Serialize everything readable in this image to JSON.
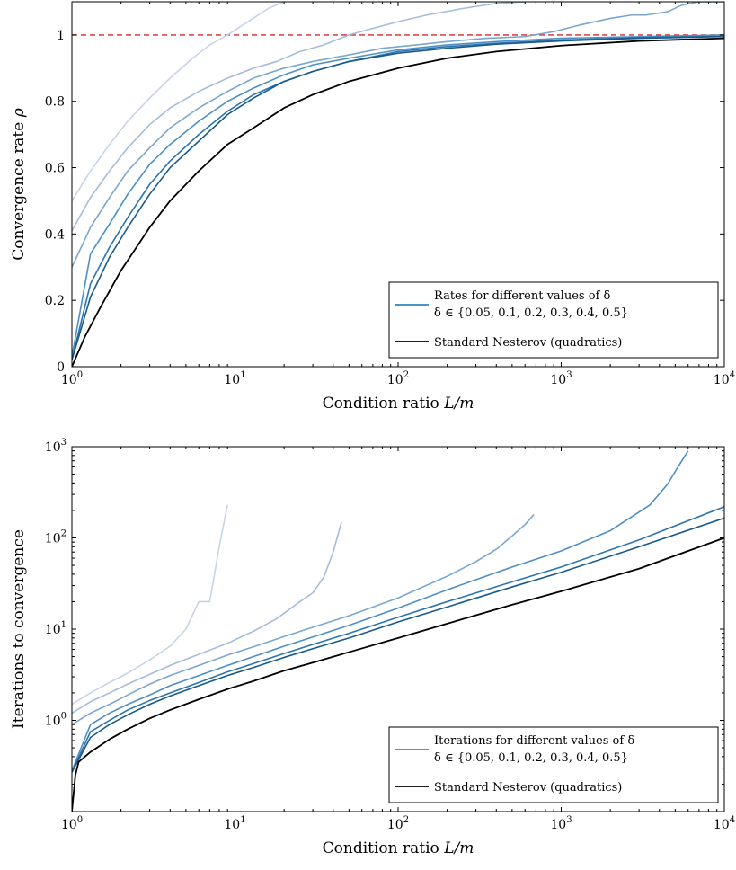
{
  "chart_data": [
    {
      "type": "line",
      "xlabel": "Condition ratio L/m",
      "ylabel": "Convergence rate ρ",
      "xscale": "log",
      "xlim": [
        1,
        10000
      ],
      "ylim": [
        0,
        1.1
      ],
      "xticks": [
        "10^0",
        "10^1",
        "10^2",
        "10^3",
        "10^4"
      ],
      "yticks": [
        "0",
        "0.2",
        "0.4",
        "0.6",
        "0.8",
        "1"
      ],
      "grid": false,
      "legend_position": "bottom-right",
      "legend": [
        {
          "label_line1": "Rates for different values of δ",
          "label_line2": "δ ∈ {0.05, 0.1, 0.2, 0.3, 0.4, 0.5}",
          "color": "#2e86c1"
        },
        {
          "label_line1": "Standard Nesterov (quadratics)",
          "color": "#000000"
        }
      ],
      "reference_line": {
        "y": 1,
        "color": "#d62728",
        "style": "dashed"
      },
      "series": [
        {
          "delta": 0.5,
          "color": "#c9d3e6",
          "x": [
            1,
            1.3,
            1.7,
            2.2,
            3,
            4,
            5.5,
            7,
            9,
            12,
            16,
            20
          ],
          "y": [
            0.5,
            0.59,
            0.67,
            0.74,
            0.81,
            0.87,
            0.93,
            0.97,
            1.0,
            1.04,
            1.08,
            1.1
          ]
        },
        {
          "delta": 0.4,
          "color": "#a7bcda",
          "x": [
            1,
            1.3,
            1.7,
            2.2,
            3,
            4,
            6,
            9,
            13,
            18,
            25,
            35,
            50,
            70,
            100,
            150,
            250,
            400,
            600
          ],
          "y": [
            0.41,
            0.51,
            0.59,
            0.66,
            0.73,
            0.78,
            0.83,
            0.87,
            0.9,
            0.92,
            0.95,
            0.97,
            1.0,
            1.02,
            1.04,
            1.06,
            1.08,
            1.095,
            1.1
          ]
        },
        {
          "delta": 0.3,
          "color": "#7ba6cf",
          "x": [
            1,
            1.3,
            1.7,
            2.2,
            3,
            4,
            6,
            9,
            13,
            20,
            30,
            50,
            80,
            130,
            200,
            350,
            600,
            900,
            1300,
            2000,
            2700,
            3300,
            4500,
            5500,
            7000,
            10000
          ],
          "y": [
            0.3,
            0.42,
            0.51,
            0.59,
            0.66,
            0.72,
            0.78,
            0.83,
            0.87,
            0.9,
            0.92,
            0.94,
            0.96,
            0.97,
            0.98,
            0.99,
            0.995,
            1.01,
            1.03,
            1.05,
            1.06,
            1.06,
            1.07,
            1.09,
            1.1,
            1.1
          ]
        },
        {
          "delta": 0.2,
          "color": "#4d8fc4",
          "x": [
            1,
            1.3,
            1.7,
            2.2,
            3,
            4,
            6,
            9,
            13,
            20,
            30,
            50,
            100,
            200,
            400,
            1000,
            3000,
            10000
          ],
          "y": [
            0.03,
            0.34,
            0.43,
            0.52,
            0.61,
            0.67,
            0.74,
            0.8,
            0.84,
            0.88,
            0.91,
            0.93,
            0.955,
            0.97,
            0.98,
            0.99,
            0.995,
            1.0
          ]
        },
        {
          "delta": 0.1,
          "color": "#2a74b0",
          "x": [
            1,
            1.3,
            1.7,
            2.2,
            3,
            4,
            6,
            9,
            13,
            20,
            30,
            50,
            100,
            200,
            400,
            1000,
            3000,
            10000
          ],
          "y": [
            0.02,
            0.25,
            0.36,
            0.45,
            0.55,
            0.62,
            0.7,
            0.77,
            0.82,
            0.86,
            0.89,
            0.92,
            0.95,
            0.965,
            0.975,
            0.985,
            0.992,
            0.996
          ]
        },
        {
          "delta": 0.05,
          "color": "#1a5a8a",
          "x": [
            1,
            1.3,
            1.7,
            2.2,
            3,
            4,
            6,
            9,
            13,
            20,
            30,
            50,
            100,
            200,
            400,
            1000,
            3000,
            10000
          ],
          "y": [
            0.02,
            0.21,
            0.33,
            0.42,
            0.52,
            0.6,
            0.68,
            0.76,
            0.81,
            0.86,
            0.89,
            0.92,
            0.945,
            0.96,
            0.972,
            0.982,
            0.99,
            0.995
          ]
        },
        {
          "name": "Standard Nesterov (quadratics)",
          "color": "#000000",
          "x": [
            1,
            1.2,
            1.5,
            2,
            3,
            4,
            6,
            9,
            13,
            20,
            30,
            50,
            100,
            200,
            400,
            1000,
            3000,
            10000
          ],
          "y": [
            0.0,
            0.09,
            0.18,
            0.29,
            0.42,
            0.5,
            0.59,
            0.67,
            0.72,
            0.78,
            0.82,
            0.86,
            0.9,
            0.93,
            0.95,
            0.968,
            0.982,
            0.99
          ]
        }
      ]
    },
    {
      "type": "line",
      "xlabel": "Condition ratio L/m",
      "ylabel": "Iterations to convergence",
      "xscale": "log",
      "yscale": "log",
      "xlim": [
        1,
        10000
      ],
      "ylim": [
        0.1,
        1000
      ],
      "xticks": [
        "10^0",
        "10^1",
        "10^2",
        "10^3",
        "10^4"
      ],
      "yticks": [
        "10^0",
        "10^1",
        "10^2",
        "10^3"
      ],
      "grid": false,
      "legend_position": "bottom-right",
      "legend": [
        {
          "label_line1": "Iterations for different values of δ",
          "label_line2": "δ ∈ {0.05, 0.1, 0.2, 0.3, 0.4, 0.5}",
          "color": "#2e86c1"
        },
        {
          "label_line1": "Standard Nesterov (quadratics)",
          "color": "#000000"
        }
      ],
      "series": [
        {
          "delta": 0.5,
          "color": "#c9d3e6",
          "x": [
            1,
            1.3,
            1.7,
            2.2,
            3,
            4,
            5,
            6,
            7,
            8,
            9
          ],
          "y": [
            1.5,
            2.0,
            2.6,
            3.3,
            4.6,
            6.5,
            10,
            20,
            20,
            80,
            230
          ]
        },
        {
          "delta": 0.4,
          "color": "#a7bcda",
          "x": [
            1,
            1.3,
            1.7,
            2.2,
            3,
            4,
            6,
            9,
            13,
            18,
            25,
            30,
            35,
            40,
            45
          ],
          "y": [
            1.2,
            1.6,
            2.0,
            2.5,
            3.2,
            4.0,
            5.3,
            7.0,
            9.5,
            13,
            20,
            25,
            37,
            70,
            150
          ]
        },
        {
          "delta": 0.3,
          "color": "#7ba6cf",
          "x": [
            1,
            1.3,
            1.7,
            2.2,
            3,
            4,
            6,
            9,
            13,
            20,
            30,
            50,
            100,
            200,
            300,
            400,
            500,
            600,
            680
          ],
          "y": [
            0.9,
            1.2,
            1.5,
            1.9,
            2.5,
            3.1,
            4.0,
            5.2,
            6.4,
            8.3,
            10.5,
            14,
            22,
            38,
            55,
            75,
            105,
            140,
            180
          ]
        },
        {
          "delta": 0.2,
          "color": "#4d8fc4",
          "x": [
            1,
            1.3,
            1.7,
            2.2,
            3,
            4,
            6,
            9,
            13,
            20,
            30,
            50,
            100,
            200,
            500,
            1000,
            2000,
            3500,
            4500,
            5200,
            6000
          ],
          "y": [
            0.28,
            0.9,
            1.2,
            1.5,
            1.9,
            2.4,
            3.1,
            4.0,
            5.0,
            6.5,
            8.2,
            11,
            17,
            27,
            48,
            72,
            120,
            230,
            390,
            600,
            900
          ]
        },
        {
          "delta": 0.1,
          "color": "#2a74b0",
          "x": [
            1,
            1.3,
            1.7,
            2.2,
            3,
            4,
            6,
            9,
            13,
            20,
            30,
            50,
            100,
            200,
            500,
            1000,
            3000,
            10000
          ],
          "y": [
            0.27,
            0.75,
            1.0,
            1.3,
            1.65,
            2.0,
            2.6,
            3.4,
            4.2,
            5.4,
            6.8,
            9.0,
            13.5,
            20,
            33,
            48,
            95,
            220
          ]
        },
        {
          "delta": 0.05,
          "color": "#1a5a8a",
          "x": [
            1,
            1.3,
            1.7,
            2.2,
            3,
            4,
            6,
            9,
            13,
            20,
            30,
            50,
            100,
            200,
            500,
            1000,
            3000,
            10000
          ],
          "y": [
            0.27,
            0.65,
            0.9,
            1.15,
            1.5,
            1.85,
            2.4,
            3.1,
            3.8,
            4.9,
            6.1,
            8.0,
            12,
            17.5,
            29,
            42,
            80,
            165
          ]
        },
        {
          "name": "Standard Nesterov (quadratics)",
          "color": "#000000",
          "x": [
            1,
            1.05,
            1.1,
            1.3,
            1.7,
            2.2,
            3,
            4,
            6,
            9,
            13,
            20,
            30,
            50,
            100,
            200,
            500,
            1000,
            3000,
            10000
          ],
          "y": [
            0.1,
            0.25,
            0.35,
            0.45,
            0.62,
            0.8,
            1.05,
            1.3,
            1.7,
            2.2,
            2.7,
            3.5,
            4.3,
            5.6,
            8.0,
            11.5,
            18.5,
            26,
            46,
            100
          ]
        }
      ]
    }
  ]
}
